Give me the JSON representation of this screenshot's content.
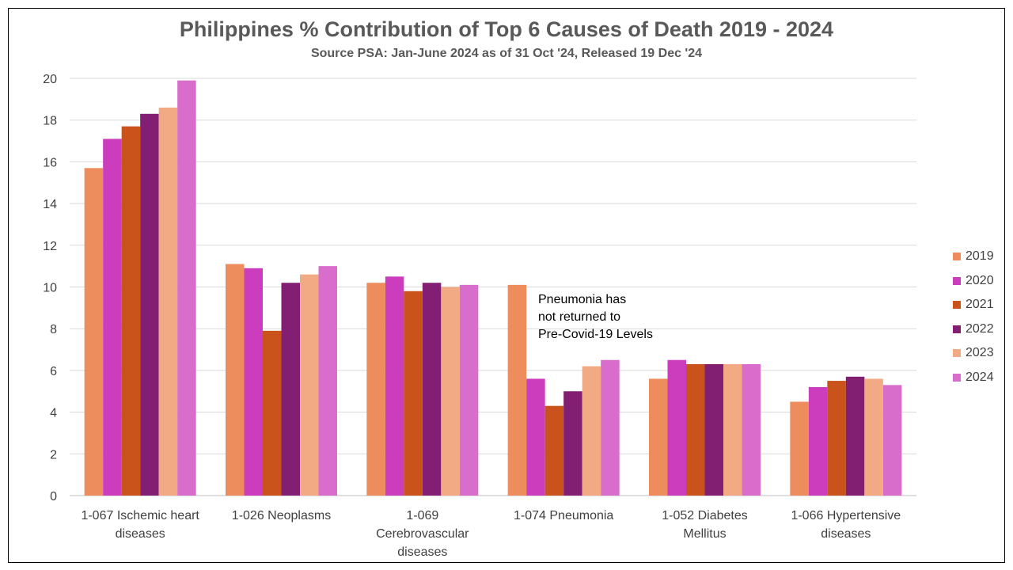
{
  "chart_data": {
    "type": "bar",
    "title": "Philippines % Contribution of Top 6 Causes of Death 2019 - 2024",
    "subtitle": "Source PSA: Jan-June 2024 as of 31 Oct '24, Released 19 Dec '24",
    "categories": [
      [
        "1-067  Ischemic heart",
        "diseases"
      ],
      [
        "1-026  Neoplasms"
      ],
      [
        "1-069",
        "Cerebrovascular",
        "diseases"
      ],
      [
        "1-074  Pneumonia"
      ],
      [
        "1-052  Diabetes",
        "Mellitus"
      ],
      [
        "1-066  Hypertensive",
        "diseases"
      ]
    ],
    "series": [
      {
        "name": "2019",
        "color": "#ED8C5C",
        "values": [
          15.7,
          11.1,
          10.2,
          10.1,
          5.6,
          4.5
        ]
      },
      {
        "name": "2020",
        "color": "#CC3DBD",
        "values": [
          17.1,
          10.9,
          10.5,
          5.6,
          6.5,
          5.2
        ]
      },
      {
        "name": "2021",
        "color": "#C9531A",
        "values": [
          17.7,
          7.9,
          9.8,
          4.3,
          6.3,
          5.5
        ]
      },
      {
        "name": "2022",
        "color": "#821F73",
        "values": [
          18.3,
          10.2,
          10.2,
          5.0,
          6.3,
          5.7
        ]
      },
      {
        "name": "2023",
        "color": "#F2AA84",
        "values": [
          18.6,
          10.6,
          10.0,
          6.2,
          6.3,
          5.6
        ]
      },
      {
        "name": "2024",
        "color": "#D96DCB",
        "values": [
          19.9,
          11.0,
          10.1,
          6.5,
          6.3,
          5.3
        ]
      }
    ],
    "ylim": [
      0,
      20
    ],
    "yticks": [
      0,
      2,
      4,
      6,
      8,
      10,
      12,
      14,
      16,
      18,
      20
    ],
    "grid": true,
    "legend_position": "right",
    "annotation": "Pneumonia has\nnot returned to\nPre-Covid-19 Levels"
  }
}
